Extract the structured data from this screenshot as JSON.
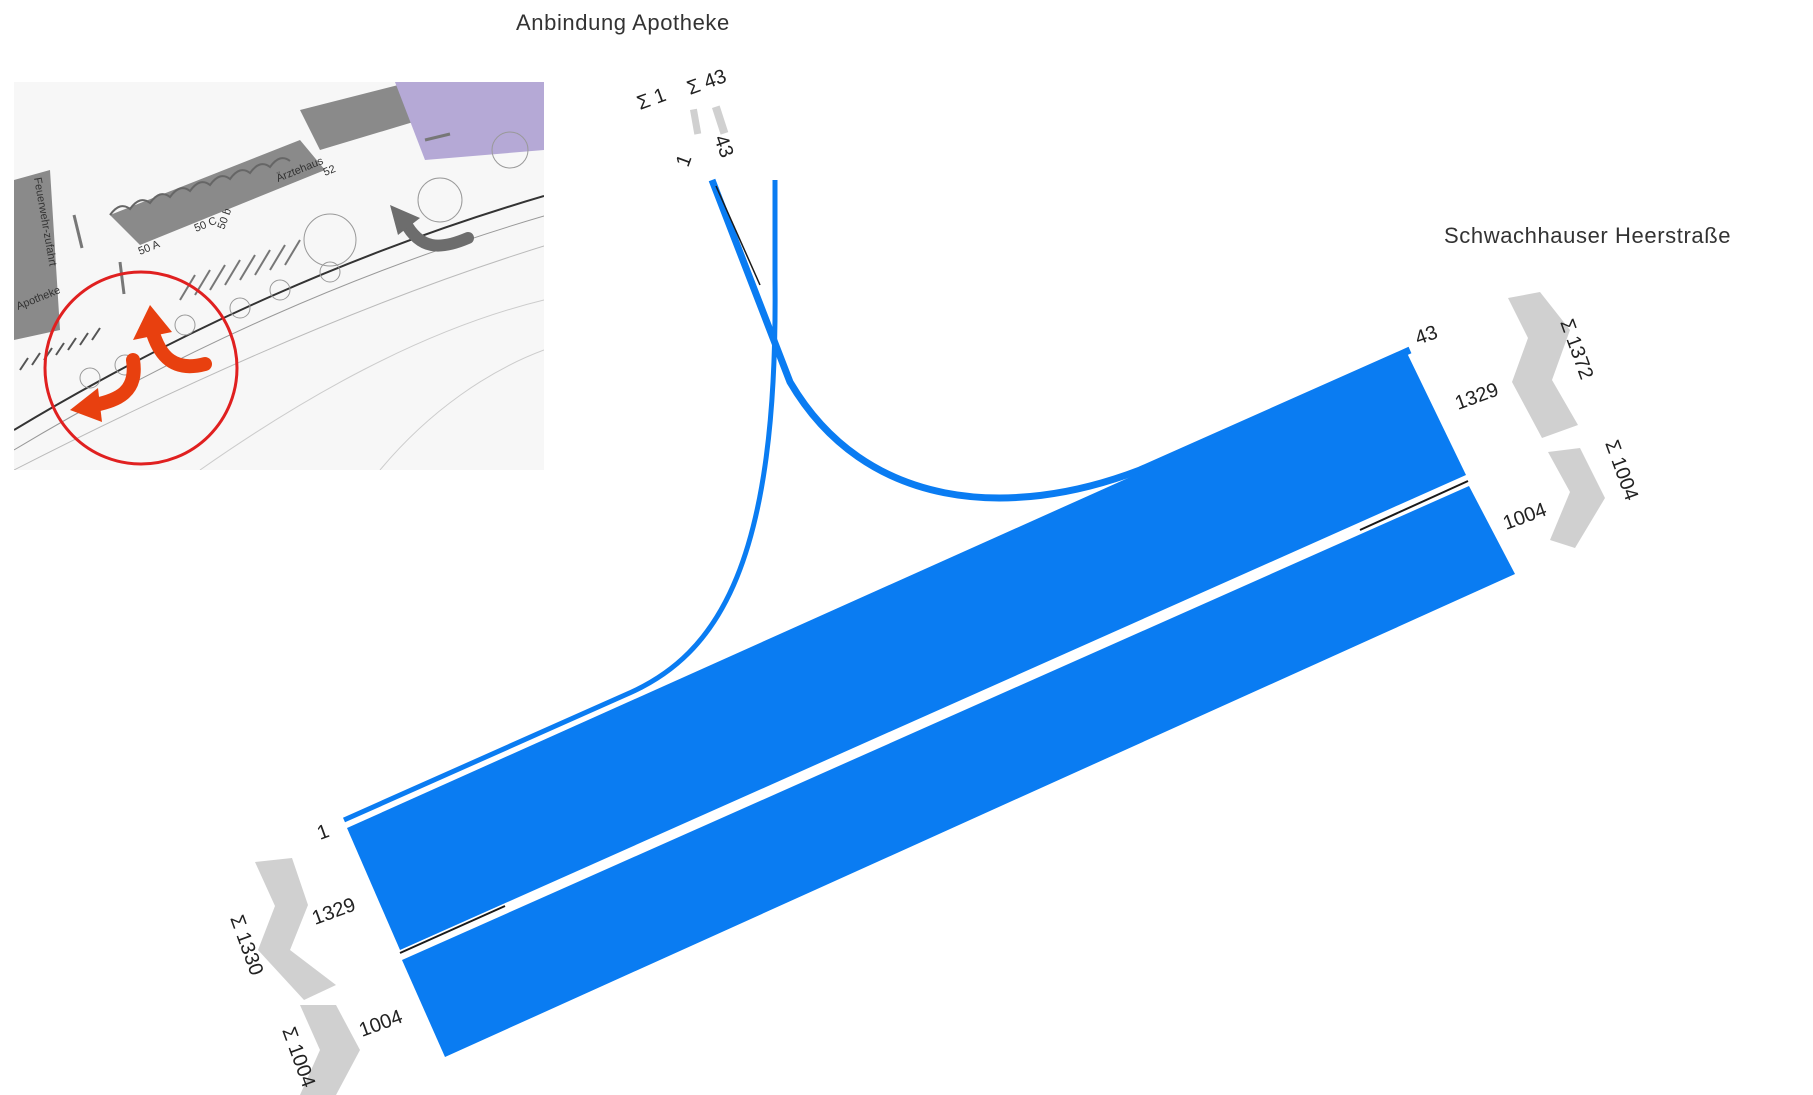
{
  "titles": {
    "branch": "Anbindung Apotheke",
    "main_road": "Schwachhauser Heerstraße"
  },
  "inset_map": {
    "labels": {
      "aerztehaus": "Ärztehaus",
      "number_52": "52",
      "apotheke": "Apotheke",
      "house_50a": "50 A",
      "house_50c": "50 C",
      "house_50b": "50 b",
      "fire_access": "Feuerwehr-zufahrt"
    },
    "highlight_color": "#e8400f",
    "circle_color": "#e02020"
  },
  "flows": {
    "branch_top_left": "1",
    "branch_top_right": "43",
    "branch_sum_left": "Σ 1",
    "branch_sum_right": "Σ 43",
    "east_in_small": "43",
    "east_in_main": "1329",
    "east_out": "1004",
    "east_sum_in": "Σ 1372",
    "east_sum_out": "Σ 1004",
    "west_small": "1",
    "west_main": "1329",
    "west_out": "1004",
    "west_sum_in": "Σ 1330",
    "west_sum_out": "Σ 1004"
  },
  "colors": {
    "flow": "#0a7cf2",
    "sum_arrow": "#d0d0d0",
    "lane_line": "#1a1a1a"
  }
}
